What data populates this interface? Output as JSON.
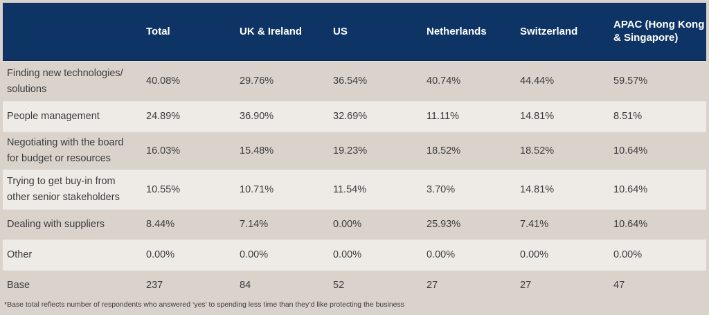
{
  "chart_data": {
    "type": "table",
    "columns": [
      "",
      "Total",
      "UK & Ireland",
      "US",
      "Netherlands",
      "Switzerland",
      "APAC (Hong Kong & Singapore)"
    ],
    "rows": [
      {
        "label": "Finding new technologies/ solutions",
        "values": [
          "40.08%",
          "29.76%",
          "36.54%",
          "40.74%",
          "44.44%",
          "59.57%"
        ]
      },
      {
        "label": "People management",
        "values": [
          "24.89%",
          "36.90%",
          "32.69%",
          "11.11%",
          "14.81%",
          "8.51%"
        ]
      },
      {
        "label": "Negotiating with the board for budget or resources",
        "values": [
          "16.03%",
          "15.48%",
          "19.23%",
          "18.52%",
          "18.52%",
          "10.64%"
        ]
      },
      {
        "label": "Trying to get buy-in from other senior stakeholders",
        "values": [
          "10.55%",
          "10.71%",
          "11.54%",
          "3.70%",
          "14.81%",
          "10.64%"
        ]
      },
      {
        "label": "Dealing with suppliers",
        "values": [
          "8.44%",
          "7.14%",
          "0.00%",
          "25.93%",
          "7.41%",
          "10.64%"
        ]
      },
      {
        "label": "Other",
        "values": [
          "0.00%",
          "0.00%",
          "0.00%",
          "0.00%",
          "0.00%",
          "0.00%"
        ]
      },
      {
        "label": "Base",
        "values": [
          "237",
          "84",
          "52",
          "27",
          "27",
          "47"
        ]
      }
    ],
    "footnote": "*Base total reflects number of respondents who answered ‘yes’ to spending less time than they’d like protecting the business"
  },
  "colors": {
    "header_bg": "#0e3465",
    "header_text": "#ffffff",
    "row_odd": "#d9d3cc",
    "row_even": "#eeebe7",
    "text": "#3c3c3c"
  }
}
